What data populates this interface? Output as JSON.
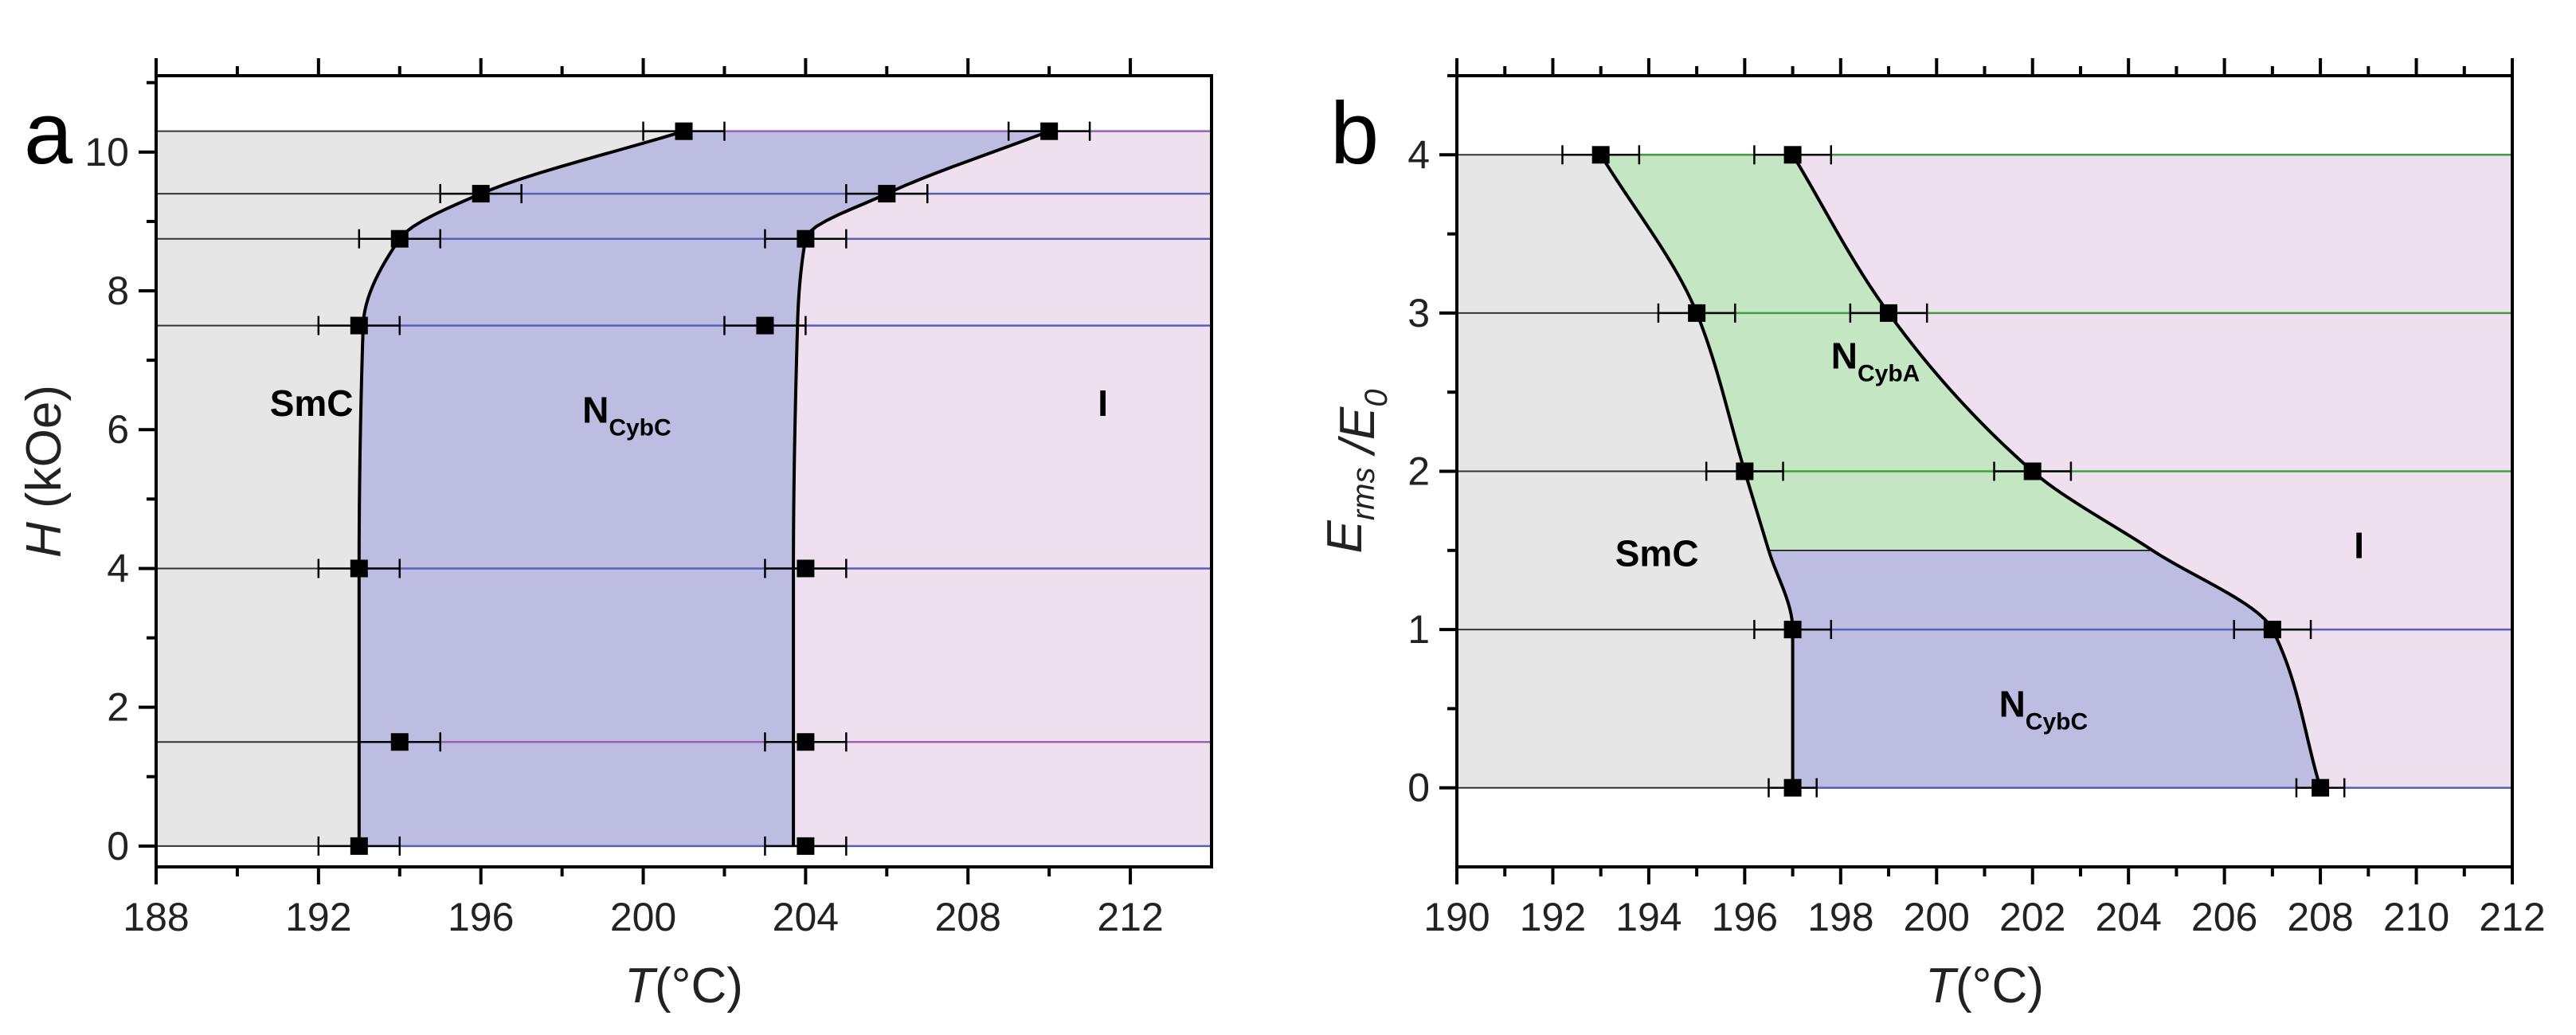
{
  "chart_data": [
    {
      "type": "scatter",
      "panel": "a",
      "xlabel": "T(°C)",
      "ylabel": "H (kOe)",
      "xlim": [
        188,
        214
      ],
      "ylim": [
        -0.3,
        11.1
      ],
      "xticks": [
        188,
        192,
        196,
        200,
        204,
        208,
        212
      ],
      "yticks": [
        0,
        2,
        4,
        6,
        8,
        10
      ],
      "regions": [
        {
          "id": "smc",
          "label": "SmC",
          "sub": "",
          "color": "#e6e6e6",
          "label_at": [
            190.8,
            6.2
          ]
        },
        {
          "id": "ncybc",
          "label": "N",
          "sub": "CybC",
          "color": "#bdbde2",
          "label_at": [
            198.5,
            6.1
          ]
        },
        {
          "id": "iso",
          "label": "I",
          "sub": "",
          "color": "#eee0ef",
          "label_at": [
            211.2,
            6.2
          ]
        }
      ],
      "lines": [
        {
          "y": 0,
          "color": "#5560b8"
        },
        {
          "y": 1.5,
          "color": "#9b60b0"
        },
        {
          "y": 4,
          "color": "#5560b8"
        },
        {
          "y": 7.5,
          "color": "#5560b8"
        },
        {
          "y": 8.75,
          "color": "#5560b8"
        },
        {
          "y": 9.4,
          "color": "#5560b8"
        },
        {
          "y": 10.3,
          "color": "#9b60b0"
        }
      ],
      "boundary_left": [
        [
          193,
          0
        ],
        [
          193,
          4
        ],
        [
          193.1,
          7.5
        ],
        [
          194,
          8.75
        ],
        [
          196,
          9.4
        ],
        [
          201,
          10.3
        ]
      ],
      "boundary_right": [
        [
          203.7,
          0
        ],
        [
          203.7,
          4
        ],
        [
          203.8,
          7.5
        ],
        [
          204,
          8.75
        ],
        [
          206,
          9.4
        ],
        [
          210,
          10.3
        ]
      ],
      "points": [
        {
          "x": 193,
          "y": 0,
          "xerr": 1
        },
        {
          "x": 204,
          "y": 0,
          "xerr": 1
        },
        {
          "x": 194,
          "y": 1.5,
          "xerr": 1
        },
        {
          "x": 204,
          "y": 1.5,
          "xerr": 1
        },
        {
          "x": 193,
          "y": 4,
          "xerr": 1
        },
        {
          "x": 204,
          "y": 4,
          "xerr": 1
        },
        {
          "x": 193,
          "y": 7.5,
          "xerr": 1
        },
        {
          "x": 203,
          "y": 7.5,
          "xerr": 1
        },
        {
          "x": 194,
          "y": 8.75,
          "xerr": 1
        },
        {
          "x": 204,
          "y": 8.75,
          "xerr": 1
        },
        {
          "x": 196,
          "y": 9.4,
          "xerr": 1
        },
        {
          "x": 206,
          "y": 9.4,
          "xerr": 1
        },
        {
          "x": 201,
          "y": 10.3,
          "xerr": 1
        },
        {
          "x": 210,
          "y": 10.3,
          "xerr": 1
        }
      ]
    },
    {
      "type": "scatter",
      "panel": "b",
      "xlabel": "T(°C)",
      "ylabel": "E_rms/E_0",
      "xlim": [
        190,
        212
      ],
      "ylim": [
        -0.5,
        4.5
      ],
      "xticks": [
        190,
        192,
        194,
        196,
        198,
        200,
        202,
        204,
        206,
        208,
        210,
        212
      ],
      "yticks": [
        0,
        1,
        2,
        3,
        4
      ],
      "regions": [
        {
          "id": "smc",
          "label": "SmC",
          "sub": "",
          "color": "#e6e6e6",
          "label_at": [
            193.3,
            1.4
          ]
        },
        {
          "id": "ncyba",
          "label": "N",
          "sub": "CybA",
          "color": "#c4e6c2",
          "label_at": [
            197.8,
            2.65
          ]
        },
        {
          "id": "ncybc",
          "label": "N",
          "sub": "CybC",
          "color": "#bdbde2",
          "label_at": [
            201.3,
            0.45
          ]
        },
        {
          "id": "iso",
          "label": "I",
          "sub": "",
          "color": "#eee0ef",
          "label_at": [
            208.7,
            1.45
          ]
        }
      ],
      "lines": [
        {
          "y": 0,
          "color": "#5560b8"
        },
        {
          "y": 1,
          "color": "#5560b8"
        },
        {
          "y": 2,
          "color": "#40a040"
        },
        {
          "y": 3,
          "color": "#40a040"
        },
        {
          "y": 4,
          "color": "#40a040"
        }
      ],
      "boundary_left": [
        [
          197,
          0
        ],
        [
          197,
          1
        ],
        [
          196.5,
          1.5
        ],
        [
          196,
          2
        ],
        [
          195,
          3
        ],
        [
          193,
          4
        ]
      ],
      "boundary_right": [
        [
          208,
          0
        ],
        [
          207,
          1
        ],
        [
          204.5,
          1.5
        ],
        [
          202,
          2
        ],
        [
          199,
          3
        ],
        [
          197,
          4
        ]
      ],
      "ncyba_ncybc_split": 1.5,
      "points": [
        {
          "x": 197,
          "y": 0,
          "xerr": 0.5
        },
        {
          "x": 208,
          "y": 0,
          "xerr": 0.5
        },
        {
          "x": 197,
          "y": 1,
          "xerr": 0.8
        },
        {
          "x": 207,
          "y": 1,
          "xerr": 0.8
        },
        {
          "x": 196,
          "y": 2,
          "xerr": 0.8
        },
        {
          "x": 202,
          "y": 2,
          "xerr": 0.8
        },
        {
          "x": 195,
          "y": 3,
          "xerr": 0.8
        },
        {
          "x": 199,
          "y": 3,
          "xerr": 0.8
        },
        {
          "x": 193,
          "y": 4,
          "xerr": 0.8
        },
        {
          "x": 197,
          "y": 4,
          "xerr": 0.8
        }
      ]
    }
  ]
}
